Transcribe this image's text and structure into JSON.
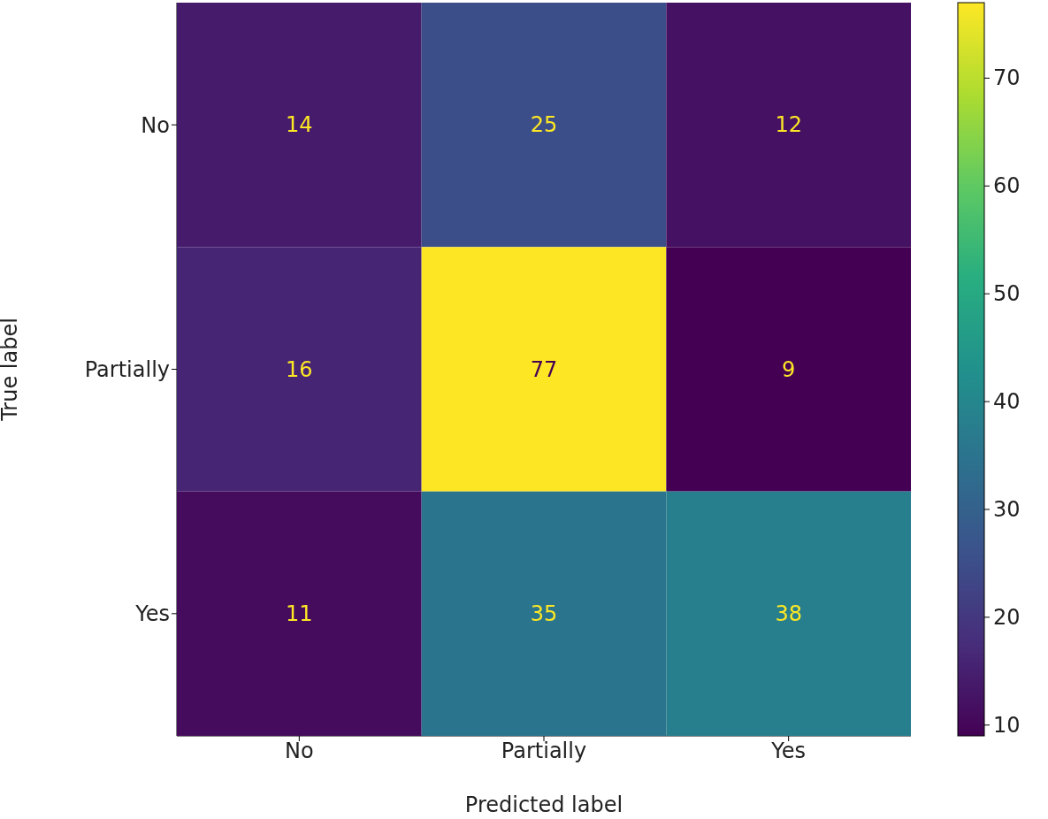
{
  "chart_data": {
    "type": "heatmap",
    "xlabel": "Predicted label",
    "ylabel": "True label",
    "categories": [
      "No",
      "Partially",
      "Yes"
    ],
    "y_categories": [
      "No",
      "Partially",
      "Yes"
    ],
    "cells": [
      [
        14,
        25,
        12
      ],
      [
        16,
        77,
        9
      ],
      [
        11,
        35,
        38
      ]
    ],
    "clim": [
      9,
      77
    ],
    "cticks": [
      10,
      20,
      30,
      40,
      50,
      60,
      70
    ],
    "data_labels": true
  }
}
